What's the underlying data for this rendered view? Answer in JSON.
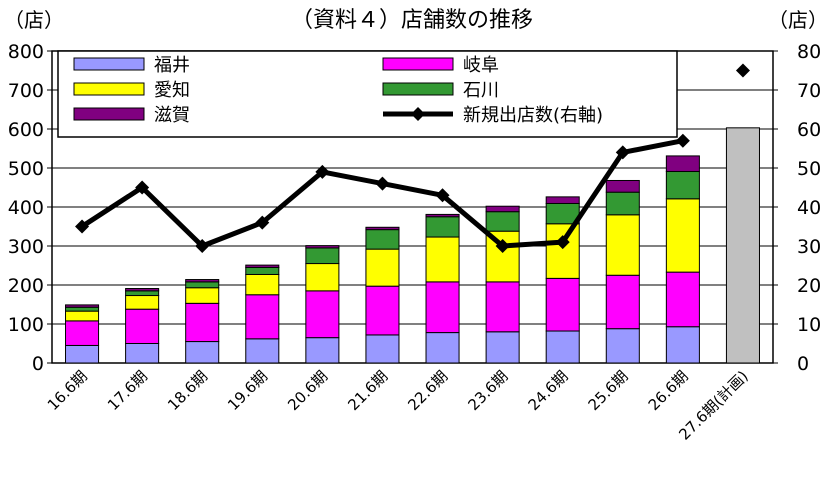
{
  "chart_data": {
    "type": "bar",
    "title": "（資料４）店舗数の推移",
    "y_left_unit": "（店）",
    "y_right_unit": "（店）",
    "categories": [
      "16.6期",
      "17.6期",
      "18.6期",
      "19.6期",
      "20.6期",
      "21.6期",
      "22.6期",
      "23.6期",
      "24.6期",
      "25.6期",
      "26.6期",
      "27.6期(計画)"
    ],
    "ylim_left": [
      0,
      800
    ],
    "yticks_left": [
      "0",
      "100",
      "200",
      "300",
      "400",
      "500",
      "600",
      "700",
      "800"
    ],
    "ylim_right": [
      0,
      80
    ],
    "yticks_right": [
      "0",
      "10",
      "20",
      "30",
      "40",
      "50",
      "60",
      "70",
      "80"
    ],
    "grid": true,
    "legend_position": "top",
    "series": [
      {
        "name": "福井",
        "color": "#9999ff",
        "values": [
          45,
          50,
          55,
          62,
          65,
          72,
          78,
          80,
          82,
          88,
          93,
          null
        ]
      },
      {
        "name": "岐阜",
        "color": "#ff00ff",
        "values": [
          63,
          88,
          98,
          113,
          120,
          125,
          130,
          128,
          135,
          137,
          140,
          null
        ]
      },
      {
        "name": "愛知",
        "color": "#ffff00",
        "values": [
          25,
          35,
          40,
          52,
          70,
          95,
          115,
          130,
          140,
          155,
          188,
          null
        ]
      },
      {
        "name": "石川",
        "color": "#339933",
        "values": [
          10,
          12,
          15,
          18,
          40,
          50,
          52,
          50,
          52,
          58,
          70,
          null
        ]
      },
      {
        "name": "滋賀",
        "color": "#800080",
        "values": [
          6,
          6,
          6,
          6,
          6,
          6,
          6,
          14,
          17,
          30,
          40,
          null
        ]
      }
    ],
    "plan_total": {
      "category": "27.6期(計画)",
      "value": 603,
      "color": "#c0c0c0"
    },
    "line_series": {
      "name": "新規出店数(右軸)",
      "axis": "right",
      "color": "#000000",
      "values": [
        35,
        45,
        30,
        36,
        49,
        46,
        43,
        30,
        31,
        54,
        57
      ],
      "plan_value": 75
    }
  }
}
